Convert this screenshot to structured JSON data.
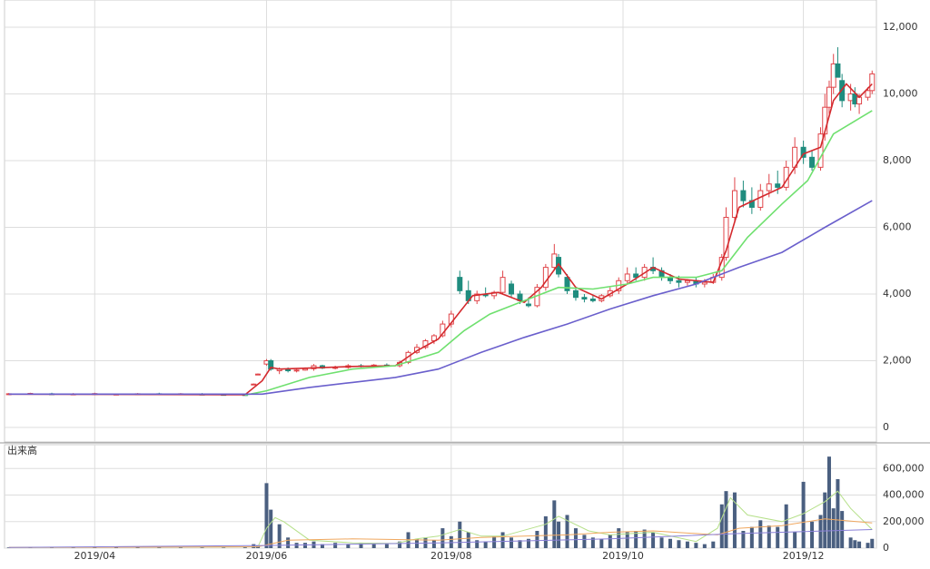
{
  "chart_data": [
    {
      "type": "candlestick",
      "up_color": "#e0454a",
      "down_color": "#1f8c7e",
      "xlim": [
        -1,
        202
      ],
      "ylim": [
        -435,
        12816
      ],
      "yticks": [
        0,
        {
          "value": 2000,
          "label": "2,000"
        },
        {
          "value": 4000,
          "label": "4,000"
        },
        {
          "value": 6000,
          "label": "6,000"
        },
        {
          "value": 8000,
          "label": "8,000"
        },
        {
          "value": 10000,
          "label": "10,000"
        },
        {
          "value": 12000,
          "label": "12,000"
        }
      ],
      "grid": true,
      "x": [
        0,
        5,
        10,
        15,
        20,
        25,
        30,
        35,
        40,
        45,
        50,
        55,
        57,
        58,
        60,
        61,
        63,
        65,
        67,
        69,
        71,
        73,
        76,
        79,
        82,
        85,
        88,
        91,
        93,
        95,
        97,
        99,
        101,
        103,
        105,
        107,
        109,
        111,
        113,
        115,
        117,
        119,
        121,
        123,
        125,
        127,
        128,
        130,
        132,
        134,
        136,
        138,
        140,
        142,
        144,
        146,
        148,
        150,
        152,
        154,
        156,
        158,
        160,
        162,
        164,
        166,
        167,
        169,
        171,
        173,
        175,
        177,
        179,
        181,
        183,
        185,
        187,
        189,
        190,
        191,
        192,
        193,
        194,
        196,
        197,
        198,
        200,
        201
      ],
      "open": [
        990,
        1000,
        1010,
        995,
        1005,
        990,
        1000,
        1010,
        995,
        1000,
        990,
        985,
        1300,
        1600,
        1900,
        2000,
        1700,
        1750,
        1700,
        1720,
        1760,
        1850,
        1780,
        1800,
        1850,
        1830,
        1870,
        1850,
        1950,
        2250,
        2400,
        2600,
        2750,
        3100,
        4500,
        4100,
        3800,
        4000,
        3950,
        4050,
        4300,
        4000,
        3700,
        3650,
        4200,
        4800,
        5100,
        4500,
        4100,
        3900,
        3850,
        3800,
        3950,
        4100,
        4400,
        4600,
        4500,
        4800,
        4700,
        4500,
        4400,
        4350,
        4400,
        4300,
        4350,
        4500,
        5100,
        6300,
        7100,
        6800,
        6600,
        7100,
        7300,
        7200,
        7800,
        8400,
        8100,
        7800,
        8800,
        9600,
        10200,
        10900,
        10400,
        9800,
        10000,
        9700,
        9900,
        10100
      ],
      "high": [
        1030,
        1040,
        1040,
        1030,
        1040,
        1020,
        1030,
        1040,
        1030,
        1030,
        1020,
        1010,
        1320,
        1620,
        2050,
        2050,
        1800,
        1800,
        1780,
        1800,
        1900,
        1880,
        1850,
        1900,
        1900,
        1900,
        1920,
        2000,
        2300,
        2500,
        2650,
        2800,
        3200,
        3500,
        4700,
        4400,
        4100,
        4200,
        4100,
        4700,
        4400,
        4100,
        3900,
        4300,
        4900,
        5500,
        5200,
        4600,
        4200,
        4000,
        3950,
        4000,
        4200,
        4500,
        4800,
        4800,
        4900,
        5100,
        4800,
        4600,
        4550,
        4450,
        4500,
        4450,
        4600,
        5200,
        6600,
        7500,
        7400,
        7200,
        7300,
        7600,
        7700,
        8000,
        8700,
        8600,
        8300,
        9000,
        10000,
        10400,
        11200,
        11400,
        10600,
        10300,
        10200,
        10000,
        10200,
        10700
      ],
      "low": [
        970,
        980,
        990,
        970,
        985,
        965,
        975,
        990,
        970,
        980,
        965,
        960,
        1280,
        1580,
        1850,
        1700,
        1600,
        1650,
        1650,
        1700,
        1700,
        1750,
        1740,
        1760,
        1800,
        1800,
        1820,
        1800,
        1900,
        2200,
        2350,
        2500,
        2700,
        3000,
        4000,
        3700,
        3700,
        3900,
        3850,
        4000,
        3900,
        3700,
        3600,
        3600,
        4100,
        4700,
        4500,
        4000,
        3800,
        3750,
        3750,
        3750,
        3900,
        4000,
        4300,
        4400,
        4400,
        4600,
        4400,
        4300,
        4200,
        4250,
        4200,
        4200,
        4300,
        4400,
        5000,
        6200,
        6600,
        6400,
        6500,
        6900,
        7000,
        7100,
        7600,
        7900,
        7700,
        7700,
        8600,
        9400,
        10000,
        10600,
        9600,
        9500,
        9600,
        9400,
        9800,
        10000
      ],
      "close": [
        1010,
        1020,
        995,
        1005,
        1015,
        1000,
        1010,
        995,
        1010,
        990,
        985,
        970,
        1300,
        1600,
        2000,
        1750,
        1750,
        1700,
        1720,
        1760,
        1850,
        1780,
        1800,
        1850,
        1830,
        1870,
        1850,
        1950,
        2250,
        2400,
        2600,
        2750,
        3100,
        3400,
        4100,
        3800,
        4000,
        3950,
        4050,
        4500,
        4000,
        3800,
        3650,
        4200,
        4800,
        5200,
        4600,
        4100,
        3900,
        3850,
        3800,
        3950,
        4100,
        4400,
        4600,
        4500,
        4800,
        4700,
        4500,
        4400,
        4350,
        4400,
        4300,
        4350,
        4500,
        5100,
        6300,
        7100,
        6800,
        6600,
        7100,
        7300,
        7200,
        7800,
        8400,
        8100,
        7800,
        8800,
        9600,
        10200,
        10900,
        10500,
        9800,
        10000,
        9700,
        9900,
        10100,
        10600
      ],
      "lines": [
        {
          "color": "#d42a2e",
          "x": [
            0,
            55,
            59,
            61,
            63,
            70,
            80,
            90,
            95,
            100,
            104,
            108,
            114,
            120,
            124,
            128,
            132,
            138,
            144,
            150,
            156,
            164,
            167,
            170,
            175,
            180,
            185,
            189,
            192,
            195,
            198,
            201
          ],
          "values": [
            1000,
            980,
            1400,
            1800,
            1750,
            1780,
            1830,
            1850,
            2300,
            2650,
            3300,
            3950,
            4050,
            3750,
            4200,
            4900,
            4200,
            3850,
            4300,
            4800,
            4450,
            4350,
            5300,
            6600,
            6900,
            7200,
            8200,
            8400,
            9800,
            10300,
            9900,
            10300
          ]
        },
        {
          "color": "#6fe06f",
          "x": [
            55,
            60,
            70,
            80,
            90,
            100,
            106,
            112,
            120,
            128,
            136,
            144,
            150,
            160,
            166,
            172,
            180,
            186,
            192,
            201
          ],
          "values": [
            970,
            1100,
            1500,
            1750,
            1850,
            2250,
            2900,
            3400,
            3800,
            4200,
            4150,
            4300,
            4500,
            4500,
            4700,
            5700,
            6700,
            7400,
            8800,
            9500
          ]
        },
        {
          "color": "#6a5fcc",
          "x": [
            0,
            59,
            70,
            80,
            90,
            100,
            110,
            120,
            130,
            140,
            150,
            160,
            170,
            180,
            190,
            201
          ],
          "values": [
            1000,
            1000,
            1200,
            1350,
            1500,
            1750,
            2250,
            2700,
            3100,
            3550,
            3950,
            4300,
            4800,
            5250,
            6000,
            6800
          ]
        }
      ]
    },
    {
      "type": "bar",
      "title": "出来高",
      "color": "#4a5f80",
      "xlim": [
        -1,
        202
      ],
      "ylim": [
        0,
        780000
      ],
      "xticks": [
        {
          "value": 20,
          "label": "2019/04"
        },
        {
          "value": 60,
          "label": "2019/06"
        },
        {
          "value": 103,
          "label": "2019/08"
        },
        {
          "value": 143,
          "label": "2019/10"
        },
        {
          "value": 185,
          "label": "2019/12"
        }
      ],
      "yticks": [
        0,
        {
          "value": 200000,
          "label": "200,000"
        },
        {
          "value": 400000,
          "label": "400,000"
        },
        {
          "value": 600000,
          "label": "600,000"
        }
      ],
      "grid": true,
      "x": [
        0,
        5,
        10,
        15,
        20,
        25,
        30,
        35,
        40,
        45,
        50,
        55,
        57,
        58,
        60,
        61,
        63,
        65,
        67,
        69,
        71,
        73,
        76,
        79,
        82,
        85,
        88,
        91,
        93,
        95,
        97,
        99,
        101,
        103,
        105,
        107,
        109,
        111,
        113,
        115,
        117,
        119,
        121,
        123,
        125,
        127,
        128,
        130,
        132,
        134,
        136,
        138,
        140,
        142,
        144,
        146,
        148,
        150,
        152,
        154,
        156,
        158,
        160,
        162,
        164,
        166,
        167,
        169,
        171,
        173,
        175,
        177,
        179,
        181,
        183,
        185,
        187,
        189,
        190,
        191,
        192,
        193,
        194,
        196,
        197,
        198,
        200,
        201
      ],
      "values": [
        5000,
        4000,
        6000,
        5000,
        4000,
        5000,
        6000,
        4000,
        5000,
        5000,
        4000,
        6000,
        30000,
        20000,
        490000,
        290000,
        180000,
        80000,
        40000,
        40000,
        50000,
        30000,
        40000,
        30000,
        40000,
        30000,
        30000,
        50000,
        120000,
        70000,
        80000,
        60000,
        150000,
        90000,
        200000,
        120000,
        60000,
        50000,
        90000,
        120000,
        80000,
        60000,
        70000,
        130000,
        240000,
        360000,
        200000,
        250000,
        150000,
        100000,
        80000,
        70000,
        100000,
        150000,
        120000,
        130000,
        140000,
        120000,
        80000,
        70000,
        60000,
        50000,
        40000,
        30000,
        50000,
        330000,
        430000,
        420000,
        130000,
        160000,
        210000,
        170000,
        160000,
        330000,
        120000,
        500000,
        200000,
        250000,
        420000,
        690000,
        300000,
        520000,
        280000,
        80000,
        60000,
        50000,
        40000,
        70000
      ],
      "lines": [
        {
          "color": "#b6e08a",
          "x": [
            0,
            58,
            60,
            62,
            64,
            70,
            80,
            90,
            95,
            100,
            105,
            110,
            115,
            125,
            128,
            135,
            140,
            150,
            160,
            165,
            168,
            172,
            180,
            185,
            190,
            193,
            196,
            201
          ],
          "values": [
            5000,
            10000,
            150000,
            230000,
            200000,
            60000,
            40000,
            35000,
            70000,
            90000,
            140000,
            90000,
            90000,
            180000,
            240000,
            130000,
            100000,
            120000,
            50000,
            150000,
            380000,
            250000,
            200000,
            260000,
            350000,
            430000,
            300000,
            140000
          ]
        },
        {
          "color": "#f0a860",
          "x": [
            0,
            58,
            65,
            80,
            90,
            100,
            110,
            120,
            130,
            140,
            150,
            160,
            165,
            170,
            180,
            190,
            201
          ],
          "values": [
            5000,
            10000,
            60000,
            70000,
            65000,
            60000,
            80000,
            90000,
            100000,
            120000,
            130000,
            110000,
            100000,
            150000,
            170000,
            220000,
            190000
          ]
        },
        {
          "color": "#8a80d8",
          "x": [
            0,
            60,
            100,
            140,
            170,
            201
          ],
          "values": [
            5000,
            20000,
            40000,
            70000,
            110000,
            140000
          ]
        }
      ]
    }
  ]
}
